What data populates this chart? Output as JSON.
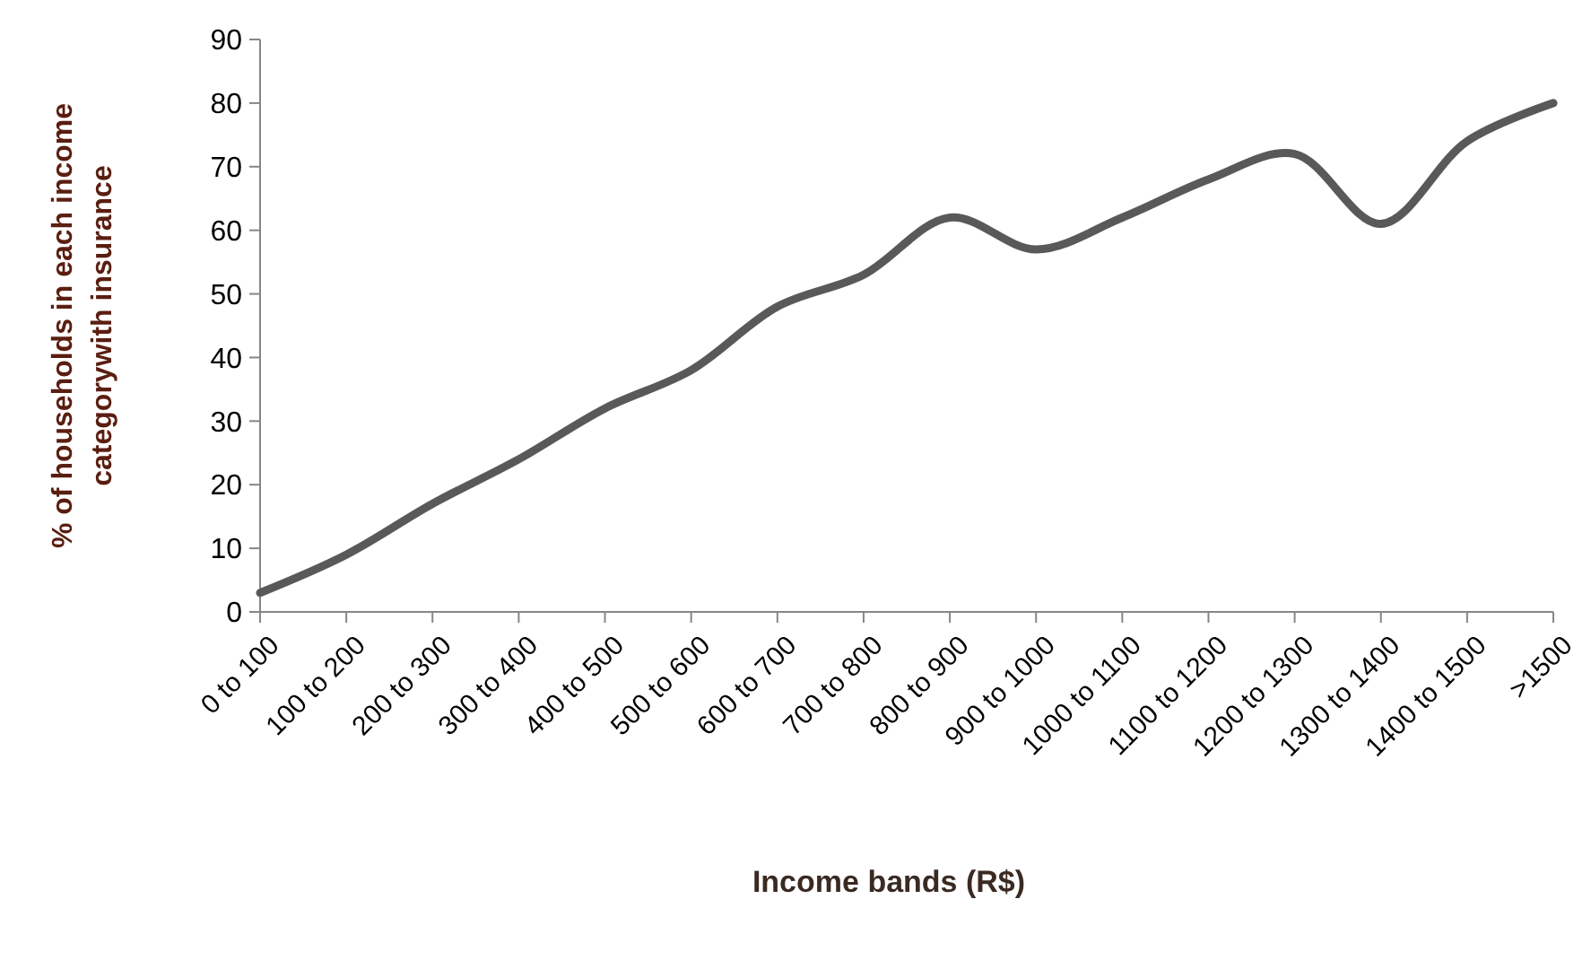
{
  "chart_data": {
    "type": "line",
    "xlabel": "Income bands (R$)",
    "ylabel": "% of households  in each income categorywith insurance",
    "categories": [
      "0 to 100",
      "100 to 200",
      "200 to 300",
      "300 to 400",
      "400 to 500",
      "500 to 600",
      "600 to 700",
      "700 to 800",
      "800 to 900",
      "900 to 1000",
      "1000 to 1100",
      "1100 to 1200",
      "1200 to 1300",
      "1300 to 1400",
      "1400 to 1500",
      ">1500"
    ],
    "series": [
      {
        "color": "#595959",
        "values": [
          3,
          9,
          17,
          24,
          32,
          38,
          48,
          53,
          62,
          57,
          62,
          68,
          72,
          61,
          74,
          80
        ]
      }
    ],
    "ylim": [
      0,
      90
    ],
    "yticks": [
      0,
      10,
      20,
      30,
      40,
      50,
      60,
      70,
      80,
      90
    ],
    "grid": false,
    "marker": "none",
    "line_style": "solid"
  }
}
